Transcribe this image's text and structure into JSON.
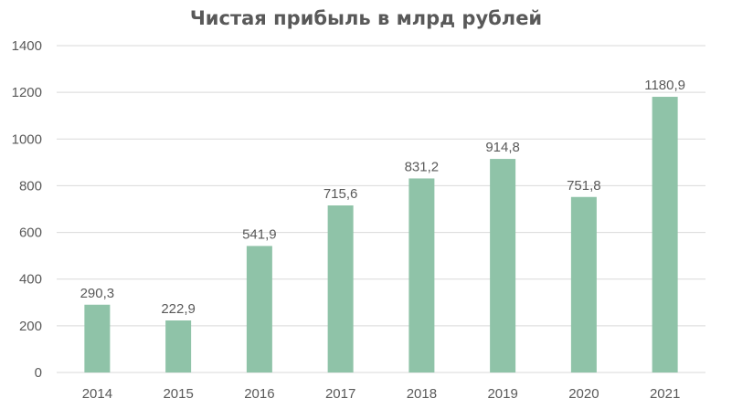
{
  "chart_data": {
    "type": "bar",
    "title": "Чистая прибыль в млрд рублей",
    "categories": [
      "2014",
      "2015",
      "2016",
      "2017",
      "2018",
      "2019",
      "2020",
      "2021"
    ],
    "values": [
      290.3,
      222.9,
      541.9,
      715.6,
      831.2,
      914.8,
      751.8,
      1180.9
    ],
    "data_labels": [
      "290,3",
      "222,9",
      "541,9",
      "715,6",
      "831,2",
      "914,8",
      "751,8",
      "1180,9"
    ],
    "ylim": [
      0,
      1400
    ],
    "yticks": [
      0,
      200,
      400,
      600,
      800,
      1000,
      1200,
      1400
    ],
    "grid": true,
    "bar_color": "#8fc3a8",
    "grid_color": "#d9d9d9"
  }
}
